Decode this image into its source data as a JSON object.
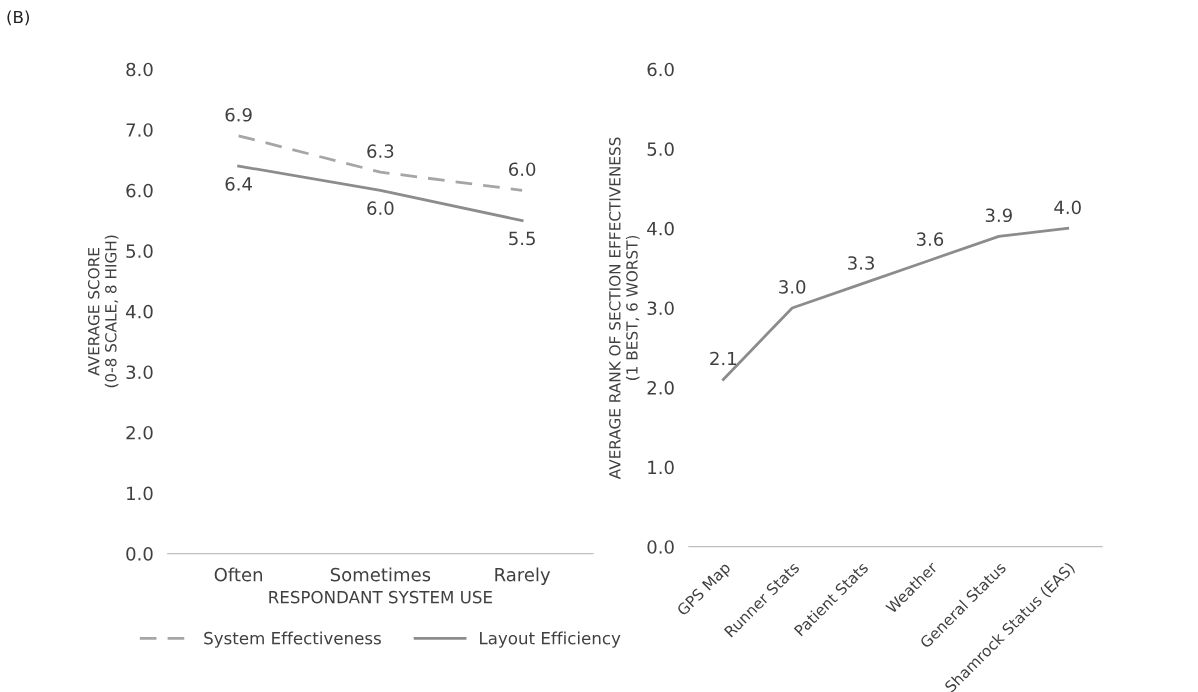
{
  "chart_data": [
    {
      "type": "line",
      "annotations": [
        "(B)"
      ],
      "xlabel": "RESPONDANT SYSTEM USE",
      "ylabel": "AVERAGE SCORE\n(0-8 SCALE, 8 HIGH)",
      "categories": [
        "Often",
        "Sometimes",
        "Rarely"
      ],
      "series": [
        {
          "name": "System Effectiveness",
          "color": "#a6a6a6",
          "values": [
            6.9,
            6.3,
            6.0
          ],
          "value_labels": [
            "6.9",
            "6.3",
            "6.0"
          ],
          "line_style": "dashed"
        },
        {
          "name": "Layout Efficiency",
          "color": "#8c8c8c",
          "values": [
            6.4,
            6.0,
            5.5
          ],
          "value_labels": [
            "6.4",
            "6.0",
            "5.5"
          ],
          "line_style": "solid"
        }
      ],
      "ylim": [
        0,
        8
      ],
      "yticks": [
        {
          "value": 0,
          "label": "0.0"
        },
        {
          "value": 1,
          "label": "1.0"
        },
        {
          "value": 2,
          "label": "2.0"
        },
        {
          "value": 3,
          "label": "3.0"
        },
        {
          "value": 4,
          "label": "4.0"
        },
        {
          "value": 5,
          "label": "5.0"
        },
        {
          "value": 6,
          "label": "6.0"
        },
        {
          "value": 7,
          "label": "7.0"
        },
        {
          "value": 8,
          "label": "8.0"
        }
      ],
      "legend": "bottom",
      "marker": "none",
      "grid": false
    },
    {
      "type": "line",
      "ylabel": "AVERAGE RANK OF SECTION EFFECTIVENESS\n(1 BEST, 6 WORST)",
      "categories": [
        "GPS Map",
        "Runner Stats",
        "Patient Stats",
        "Weather",
        "General Status",
        "Shamrock Status (EAS)"
      ],
      "series": [
        {
          "color": "#8c8c8c",
          "values": [
            2.1,
            3.0,
            3.3,
            3.6,
            3.9,
            4.0
          ],
          "value_labels": [
            "2.1",
            "3.0",
            "3.3",
            "3.6",
            "3.9",
            "4.0"
          ],
          "line_style": "solid"
        }
      ],
      "ylim": [
        0,
        6
      ],
      "yticks": [
        {
          "value": 0,
          "label": "0.0"
        },
        {
          "value": 1,
          "label": "1.0"
        },
        {
          "value": 2,
          "label": "2.0"
        },
        {
          "value": 3,
          "label": "3.0"
        },
        {
          "value": 4,
          "label": "4.0"
        },
        {
          "value": 5,
          "label": "5.0"
        },
        {
          "value": 6,
          "label": "6.0"
        }
      ],
      "legend": false,
      "marker": "none",
      "grid": false
    }
  ]
}
